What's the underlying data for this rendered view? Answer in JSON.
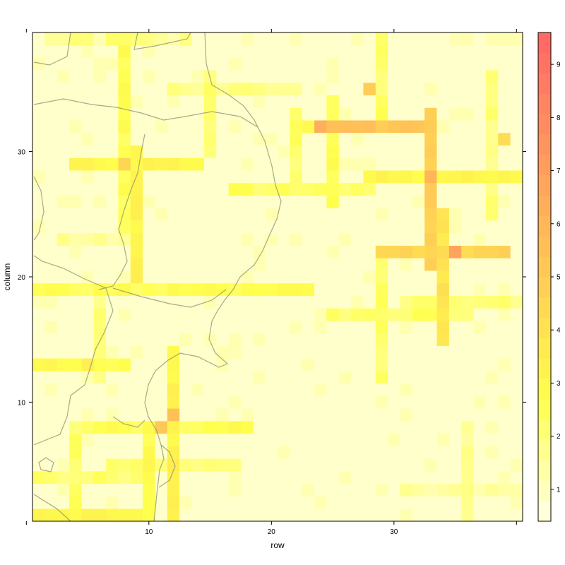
{
  "chart_data": {
    "type": "heatmap",
    "title": "",
    "xlabel": "row",
    "ylabel": "column",
    "xlim": [
      0.5,
      40.5
    ],
    "ylim": [
      0.5,
      39.5
    ],
    "x_ticks": [
      10,
      20,
      30
    ],
    "y_ticks": [
      10,
      20,
      30
    ],
    "colorbar": {
      "ticks": [
        1,
        2,
        3,
        4,
        5,
        6,
        7,
        8,
        9
      ],
      "range": [
        0.4,
        9.6
      ],
      "color_low": "#FFFFE6",
      "color_mid": "#FFFF4D",
      "color_high": "#FF6666",
      "placement": "right"
    },
    "grid": false,
    "map_overlay": "coastline and prefecture boundaries (gray lines)",
    "segments": [
      {
        "x": [
          2,
          5
        ],
        "y": 39,
        "v": 1.8
      },
      {
        "x": [
          7,
          9
        ],
        "y": 39,
        "v": 2.2
      },
      {
        "x": [
          10,
          13
        ],
        "y": 39,
        "v": 1.6
      },
      {
        "x": [
          12,
          22
        ],
        "y": 35,
        "v": 1.8
      },
      {
        "x": [
          22,
          33
        ],
        "y": 32,
        "v": 2.6
      },
      {
        "x": [
          24,
          32
        ],
        "y": 32,
        "v": 5.3
      },
      {
        "x": [
          4,
          14
        ],
        "y": 29,
        "v": 3.0
      },
      {
        "x": [
          28,
          40
        ],
        "y": 28,
        "v": 3.0
      },
      {
        "x": [
          17,
          28
        ],
        "y": 27,
        "v": 2.4
      },
      {
        "x": [
          3,
          8
        ],
        "y": 23,
        "v": 1.5
      },
      {
        "x": [
          29,
          39
        ],
        "y": 22,
        "v": 4.5
      },
      {
        "x": [
          1,
          23
        ],
        "y": 19,
        "v": 2.6
      },
      {
        "x": [
          31,
          40
        ],
        "y": 18,
        "v": 2.0
      },
      {
        "x": [
          25,
          36
        ],
        "y": 17,
        "v": 2.3
      },
      {
        "x": [
          1,
          8
        ],
        "y": 13,
        "v": 2.8
      },
      {
        "x": [
          5,
          16
        ],
        "y": 8,
        "v": 2.6
      },
      {
        "x": [
          6,
          18
        ],
        "y": 8,
        "v": 2.6
      },
      {
        "x": [
          7,
          17
        ],
        "y": 5,
        "v": 2.0
      },
      {
        "x": [
          1,
          9
        ],
        "y": 4,
        "v": 2.2
      },
      {
        "x": [
          1,
          10
        ],
        "y": 1,
        "v": 3.0
      },
      {
        "x": [
          31,
          40
        ],
        "y": 3,
        "v": 1.5
      }
    ],
    "columns": [
      {
        "x": 4,
        "y": [
          1,
          8
        ],
        "v": 2.3
      },
      {
        "x": 8,
        "y": [
          24,
          39
        ],
        "v": 2.6
      },
      {
        "x": 9,
        "y": [
          20,
          30
        ],
        "v": 3.2
      },
      {
        "x": 6,
        "y": [
          12,
          19
        ],
        "v": 2.0
      },
      {
        "x": 10,
        "y": [
          1,
          8
        ],
        "v": 2.8
      },
      {
        "x": 12,
        "y": [
          1,
          14
        ],
        "v": 3.2
      },
      {
        "x": 15,
        "y": [
          30,
          36
        ],
        "v": 2.2
      },
      {
        "x": 22,
        "y": [
          27,
          33
        ],
        "v": 2.3
      },
      {
        "x": 25,
        "y": [
          26,
          34
        ],
        "v": 2.6
      },
      {
        "x": 29,
        "y": [
          12,
          22
        ],
        "v": 2.3
      },
      {
        "x": 29,
        "y": [
          33,
          39
        ],
        "v": 2.3
      },
      {
        "x": 33,
        "y": [
          21,
          33
        ],
        "v": 4.8
      },
      {
        "x": 34,
        "y": [
          15,
          25
        ],
        "v": 3.8
      },
      {
        "x": 36,
        "y": [
          1,
          8
        ],
        "v": 1.6
      },
      {
        "x": 38,
        "y": [
          25,
          36
        ],
        "v": 2.0
      }
    ],
    "cells": [
      {
        "x": 12,
        "y": 9,
        "v": 5.5
      },
      {
        "x": 11,
        "y": 8,
        "v": 5.2
      },
      {
        "x": 24,
        "y": 32,
        "v": 6.3
      },
      {
        "x": 35,
        "y": 22,
        "v": 6.8
      },
      {
        "x": 33,
        "y": 28,
        "v": 6.0
      },
      {
        "x": 28,
        "y": 35,
        "v": 5.0
      },
      {
        "x": 39,
        "y": 31,
        "v": 4.3
      },
      {
        "x": 8,
        "y": 29,
        "v": 4.6
      },
      {
        "x": 5,
        "y": 13,
        "v": 3.4
      }
    ],
    "baseline": 0.8
  }
}
